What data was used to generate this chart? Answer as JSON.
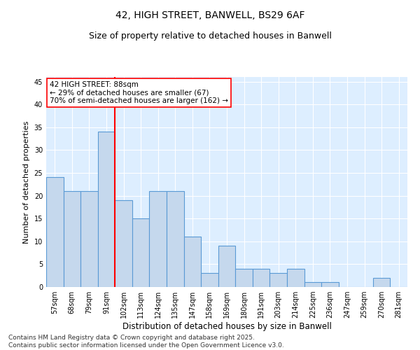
{
  "title1": "42, HIGH STREET, BANWELL, BS29 6AF",
  "title2": "Size of property relative to detached houses in Banwell",
  "xlabel": "Distribution of detached houses by size in Banwell",
  "ylabel": "Number of detached properties",
  "categories": [
    "57sqm",
    "68sqm",
    "79sqm",
    "91sqm",
    "102sqm",
    "113sqm",
    "124sqm",
    "135sqm",
    "147sqm",
    "158sqm",
    "169sqm",
    "180sqm",
    "191sqm",
    "203sqm",
    "214sqm",
    "225sqm",
    "236sqm",
    "247sqm",
    "259sqm",
    "270sqm",
    "281sqm"
  ],
  "values": [
    24,
    21,
    21,
    34,
    19,
    15,
    21,
    21,
    11,
    3,
    9,
    4,
    4,
    3,
    4,
    1,
    1,
    0,
    0,
    2,
    0
  ],
  "bar_color": "#c5d8ed",
  "bar_edge_color": "#5a9ad5",
  "bar_edge_width": 0.8,
  "vline_bar_index": 3,
  "vline_color": "red",
  "vline_linewidth": 1.5,
  "annotation_text": "42 HIGH STREET: 88sqm\n← 29% of detached houses are smaller (67)\n70% of semi-detached houses are larger (162) →",
  "annotation_box_color": "white",
  "annotation_box_edge_color": "red",
  "annotation_fontsize": 7.5,
  "ylim": [
    0,
    46
  ],
  "yticks": [
    0,
    5,
    10,
    15,
    20,
    25,
    30,
    35,
    40,
    45
  ],
  "bg_color": "#ddeeff",
  "grid_color": "white",
  "footer_text": "Contains HM Land Registry data © Crown copyright and database right 2025.\nContains public sector information licensed under the Open Government Licence v3.0.",
  "title_fontsize": 10,
  "subtitle_fontsize": 9,
  "xlabel_fontsize": 8.5,
  "ylabel_fontsize": 8,
  "tick_fontsize": 7,
  "footer_fontsize": 6.5
}
